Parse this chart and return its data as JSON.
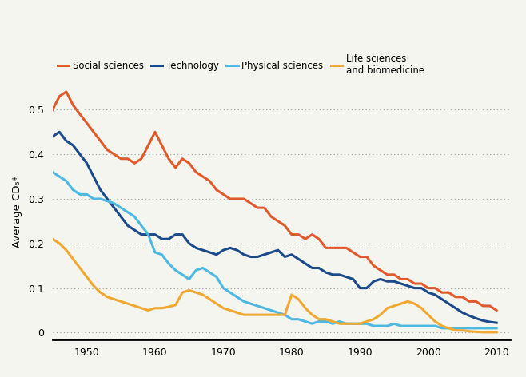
{
  "title": "",
  "ylabel": "Average CD₅*",
  "background_color": "#f5f5f0",
  "grid_color": "#999999",
  "colors": {
    "social": "#E05A2B",
    "technology": "#1B4A8A",
    "physical": "#4DB8E0",
    "life": "#F0A830"
  },
  "xlim": [
    1945,
    2012
  ],
  "ylim": [
    -0.015,
    0.56
  ],
  "xticks": [
    1950,
    1960,
    1970,
    1980,
    1990,
    2000,
    2010
  ],
  "yticks": [
    0,
    0.1,
    0.2,
    0.3,
    0.4,
    0.5
  ],
  "legend_labels": [
    "Social sciences",
    "Technology",
    "Physical sciences",
    "Life sciences\nand biomedicine"
  ],
  "social_sciences": {
    "years": [
      1945,
      1946,
      1947,
      1948,
      1949,
      1950,
      1951,
      1952,
      1953,
      1954,
      1955,
      1956,
      1957,
      1958,
      1959,
      1960,
      1961,
      1962,
      1963,
      1964,
      1965,
      1966,
      1967,
      1968,
      1969,
      1970,
      1971,
      1972,
      1973,
      1974,
      1975,
      1976,
      1977,
      1978,
      1979,
      1980,
      1981,
      1982,
      1983,
      1984,
      1985,
      1986,
      1987,
      1988,
      1989,
      1990,
      1991,
      1992,
      1993,
      1994,
      1995,
      1996,
      1997,
      1998,
      1999,
      2000,
      2001,
      2002,
      2003,
      2004,
      2005,
      2006,
      2007,
      2008,
      2009,
      2010
    ],
    "values": [
      0.5,
      0.53,
      0.54,
      0.51,
      0.49,
      0.47,
      0.45,
      0.43,
      0.41,
      0.4,
      0.39,
      0.39,
      0.38,
      0.39,
      0.42,
      0.45,
      0.42,
      0.39,
      0.37,
      0.39,
      0.38,
      0.36,
      0.35,
      0.34,
      0.32,
      0.31,
      0.3,
      0.3,
      0.3,
      0.29,
      0.28,
      0.28,
      0.26,
      0.25,
      0.24,
      0.22,
      0.22,
      0.21,
      0.22,
      0.21,
      0.19,
      0.19,
      0.19,
      0.19,
      0.18,
      0.17,
      0.17,
      0.15,
      0.14,
      0.13,
      0.13,
      0.12,
      0.12,
      0.11,
      0.11,
      0.1,
      0.1,
      0.09,
      0.09,
      0.08,
      0.08,
      0.07,
      0.07,
      0.06,
      0.06,
      0.05
    ]
  },
  "technology": {
    "years": [
      1945,
      1946,
      1947,
      1948,
      1949,
      1950,
      1951,
      1952,
      1953,
      1954,
      1955,
      1956,
      1957,
      1958,
      1959,
      1960,
      1961,
      1962,
      1963,
      1964,
      1965,
      1966,
      1967,
      1968,
      1969,
      1970,
      1971,
      1972,
      1973,
      1974,
      1975,
      1976,
      1977,
      1978,
      1979,
      1980,
      1981,
      1982,
      1983,
      1984,
      1985,
      1986,
      1987,
      1988,
      1989,
      1990,
      1991,
      1992,
      1993,
      1994,
      1995,
      1996,
      1997,
      1998,
      1999,
      2000,
      2001,
      2002,
      2003,
      2004,
      2005,
      2006,
      2007,
      2008,
      2009,
      2010
    ],
    "values": [
      0.44,
      0.45,
      0.43,
      0.42,
      0.4,
      0.38,
      0.35,
      0.32,
      0.3,
      0.28,
      0.26,
      0.24,
      0.23,
      0.22,
      0.22,
      0.22,
      0.21,
      0.21,
      0.22,
      0.22,
      0.2,
      0.19,
      0.185,
      0.18,
      0.175,
      0.185,
      0.19,
      0.185,
      0.175,
      0.17,
      0.17,
      0.175,
      0.18,
      0.185,
      0.17,
      0.175,
      0.165,
      0.155,
      0.145,
      0.145,
      0.135,
      0.13,
      0.13,
      0.125,
      0.12,
      0.1,
      0.1,
      0.115,
      0.12,
      0.115,
      0.115,
      0.11,
      0.105,
      0.1,
      0.1,
      0.09,
      0.085,
      0.075,
      0.065,
      0.055,
      0.045,
      0.038,
      0.032,
      0.027,
      0.024,
      0.022
    ]
  },
  "physical_sciences": {
    "years": [
      1945,
      1946,
      1947,
      1948,
      1949,
      1950,
      1951,
      1952,
      1953,
      1954,
      1955,
      1956,
      1957,
      1958,
      1959,
      1960,
      1961,
      1962,
      1963,
      1964,
      1965,
      1966,
      1967,
      1968,
      1969,
      1970,
      1971,
      1972,
      1973,
      1974,
      1975,
      1976,
      1977,
      1978,
      1979,
      1980,
      1981,
      1982,
      1983,
      1984,
      1985,
      1986,
      1987,
      1988,
      1989,
      1990,
      1991,
      1992,
      1993,
      1994,
      1995,
      1996,
      1997,
      1998,
      1999,
      2000,
      2001,
      2002,
      2003,
      2004,
      2005,
      2006,
      2007,
      2008,
      2009,
      2010
    ],
    "values": [
      0.36,
      0.35,
      0.34,
      0.32,
      0.31,
      0.31,
      0.3,
      0.3,
      0.295,
      0.29,
      0.28,
      0.27,
      0.26,
      0.24,
      0.22,
      0.18,
      0.175,
      0.155,
      0.14,
      0.13,
      0.12,
      0.14,
      0.145,
      0.135,
      0.125,
      0.1,
      0.09,
      0.08,
      0.07,
      0.065,
      0.06,
      0.055,
      0.05,
      0.045,
      0.04,
      0.03,
      0.03,
      0.025,
      0.02,
      0.025,
      0.025,
      0.02,
      0.025,
      0.02,
      0.02,
      0.02,
      0.02,
      0.015,
      0.015,
      0.015,
      0.02,
      0.015,
      0.015,
      0.015,
      0.015,
      0.015,
      0.015,
      0.01,
      0.01,
      0.01,
      0.01,
      0.01,
      0.01,
      0.01,
      0.01,
      0.01
    ]
  },
  "life_sciences": {
    "years": [
      1945,
      1946,
      1947,
      1948,
      1949,
      1950,
      1951,
      1952,
      1953,
      1954,
      1955,
      1956,
      1957,
      1958,
      1959,
      1960,
      1961,
      1962,
      1963,
      1964,
      1965,
      1966,
      1967,
      1968,
      1969,
      1970,
      1971,
      1972,
      1973,
      1974,
      1975,
      1976,
      1977,
      1978,
      1979,
      1980,
      1981,
      1982,
      1983,
      1984,
      1985,
      1986,
      1987,
      1988,
      1989,
      1990,
      1991,
      1992,
      1993,
      1994,
      1995,
      1996,
      1997,
      1998,
      1999,
      2000,
      2001,
      2002,
      2003,
      2004,
      2005,
      2006,
      2007,
      2008,
      2009,
      2010
    ],
    "values": [
      0.21,
      0.2,
      0.185,
      0.165,
      0.145,
      0.125,
      0.105,
      0.09,
      0.08,
      0.075,
      0.07,
      0.065,
      0.06,
      0.055,
      0.05,
      0.055,
      0.055,
      0.058,
      0.062,
      0.09,
      0.095,
      0.09,
      0.085,
      0.075,
      0.065,
      0.055,
      0.05,
      0.045,
      0.04,
      0.04,
      0.04,
      0.04,
      0.04,
      0.04,
      0.04,
      0.085,
      0.075,
      0.055,
      0.04,
      0.03,
      0.03,
      0.025,
      0.02,
      0.02,
      0.02,
      0.02,
      0.025,
      0.03,
      0.04,
      0.055,
      0.06,
      0.065,
      0.07,
      0.065,
      0.055,
      0.04,
      0.025,
      0.015,
      0.01,
      0.005,
      0.005,
      0.003,
      0.002,
      0.001,
      0.001,
      0.001
    ]
  }
}
